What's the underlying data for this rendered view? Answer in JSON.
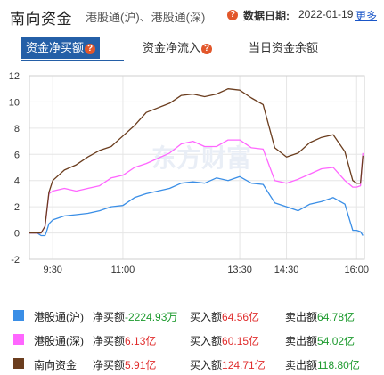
{
  "header": {
    "title": "南向资金",
    "subtitle": "港股通(沪)、港股通(深)",
    "date_label": "数据日期:",
    "date_value": "2022-01-19",
    "more_label": "更多"
  },
  "tabs": [
    {
      "label": "资金净买额",
      "has_help": true,
      "active": true
    },
    {
      "label": "资金净流入",
      "has_help": true,
      "active": false
    },
    {
      "label": "当日资金余额",
      "has_help": false,
      "active": false
    }
  ],
  "help_glyph": "?",
  "watermark": "东方财富",
  "colors": {
    "sh": "#3a8ee6",
    "sz": "#ff66ff",
    "total": "#6b3d1e",
    "accent": "#245fa7",
    "up": "#e02c2c",
    "down": "#1d9a2e"
  },
  "chart_data": {
    "type": "line",
    "title": "",
    "xlabel": "",
    "ylabel": "",
    "ylim": [
      -2,
      12
    ],
    "yticks": [
      12,
      10,
      8,
      6,
      4,
      2,
      0,
      -2
    ],
    "xlim": [
      "09:00",
      "16:10"
    ],
    "xticks": [
      "9:30",
      "11:00",
      "13:30",
      "14:30",
      "16:00"
    ],
    "grid": true,
    "series": [
      {
        "name": "港股通(沪)",
        "color": "#3a8ee6",
        "points": [
          [
            "09:00",
            0
          ],
          [
            "09:10",
            0
          ],
          [
            "09:15",
            -0.2
          ],
          [
            "09:20",
            -0.2
          ],
          [
            "09:22",
            0.1
          ],
          [
            "09:25",
            0.7
          ],
          [
            "09:30",
            1.0
          ],
          [
            "09:45",
            1.3
          ],
          [
            "10:00",
            1.4
          ],
          [
            "10:15",
            1.5
          ],
          [
            "10:30",
            1.7
          ],
          [
            "10:45",
            2.0
          ],
          [
            "11:00",
            2.1
          ],
          [
            "11:15",
            2.7
          ],
          [
            "11:30",
            3.0
          ],
          [
            "12:00",
            3.4
          ],
          [
            "12:15",
            3.8
          ],
          [
            "12:30",
            3.9
          ],
          [
            "12:45",
            3.8
          ],
          [
            "13:00",
            4.2
          ],
          [
            "13:15",
            4.0
          ],
          [
            "13:30",
            4.3
          ],
          [
            "13:45",
            3.8
          ],
          [
            "14:00",
            3.7
          ],
          [
            "14:15",
            2.3
          ],
          [
            "14:30",
            2.0
          ],
          [
            "14:45",
            1.7
          ],
          [
            "15:00",
            2.2
          ],
          [
            "15:15",
            2.4
          ],
          [
            "15:30",
            2.7
          ],
          [
            "15:45",
            2.2
          ],
          [
            "15:55",
            0.2
          ],
          [
            "16:00",
            0.2
          ],
          [
            "16:05",
            0.1
          ],
          [
            "16:08",
            -0.2
          ]
        ]
      },
      {
        "name": "港股通(深)",
        "color": "#ff66ff",
        "points": [
          [
            "09:00",
            0
          ],
          [
            "09:10",
            0
          ],
          [
            "09:15",
            0
          ],
          [
            "09:20",
            0.5
          ],
          [
            "09:25",
            3.0
          ],
          [
            "09:30",
            3.2
          ],
          [
            "09:45",
            3.4
          ],
          [
            "10:00",
            3.2
          ],
          [
            "10:15",
            3.4
          ],
          [
            "10:30",
            3.6
          ],
          [
            "10:45",
            4.2
          ],
          [
            "11:00",
            4.4
          ],
          [
            "11:15",
            5.0
          ],
          [
            "11:30",
            5.3
          ],
          [
            "12:00",
            6.1
          ],
          [
            "12:15",
            6.8
          ],
          [
            "12:30",
            7.0
          ],
          [
            "12:45",
            6.6
          ],
          [
            "13:00",
            6.6
          ],
          [
            "13:15",
            7.1
          ],
          [
            "13:30",
            7.1
          ],
          [
            "13:45",
            6.5
          ],
          [
            "14:00",
            6.4
          ],
          [
            "14:15",
            4.0
          ],
          [
            "14:30",
            3.8
          ],
          [
            "14:45",
            4.1
          ],
          [
            "15:00",
            4.5
          ],
          [
            "15:15",
            4.9
          ],
          [
            "15:30",
            5.0
          ],
          [
            "15:45",
            4.0
          ],
          [
            "15:55",
            3.5
          ],
          [
            "16:00",
            3.5
          ],
          [
            "16:05",
            3.6
          ],
          [
            "16:08",
            6.1
          ]
        ]
      },
      {
        "name": "南向资金",
        "color": "#6b3d1e",
        "points": [
          [
            "09:00",
            0
          ],
          [
            "09:10",
            0
          ],
          [
            "09:15",
            0
          ],
          [
            "09:20",
            0.5
          ],
          [
            "09:25",
            3.1
          ],
          [
            "09:30",
            4.0
          ],
          [
            "09:45",
            4.8
          ],
          [
            "10:00",
            5.2
          ],
          [
            "10:15",
            5.8
          ],
          [
            "10:30",
            6.3
          ],
          [
            "10:45",
            6.6
          ],
          [
            "11:00",
            7.4
          ],
          [
            "11:15",
            8.2
          ],
          [
            "11:30",
            9.2
          ],
          [
            "12:00",
            9.9
          ],
          [
            "12:15",
            10.5
          ],
          [
            "12:30",
            10.6
          ],
          [
            "12:45",
            10.4
          ],
          [
            "13:00",
            10.6
          ],
          [
            "13:15",
            11.0
          ],
          [
            "13:30",
            10.9
          ],
          [
            "13:45",
            10.3
          ],
          [
            "14:00",
            9.8
          ],
          [
            "14:15",
            6.5
          ],
          [
            "14:30",
            5.8
          ],
          [
            "14:45",
            6.1
          ],
          [
            "15:00",
            6.9
          ],
          [
            "15:15",
            7.3
          ],
          [
            "15:30",
            7.5
          ],
          [
            "15:45",
            6.2
          ],
          [
            "15:55",
            4.0
          ],
          [
            "16:00",
            3.8
          ],
          [
            "16:05",
            3.8
          ],
          [
            "16:08",
            5.9
          ]
        ]
      }
    ]
  },
  "legend": [
    {
      "name": "港股通(沪)",
      "color": "#3a8ee6",
      "net_label": "净买额",
      "net_value": "-2224.93万",
      "buy_label": "买入额",
      "buy_value": "64.56亿",
      "sell_label": "卖出额",
      "sell_value": "64.78亿"
    },
    {
      "name": "港股通(深)",
      "color": "#ff66ff",
      "net_label": "净买额",
      "net_value": "6.13亿",
      "buy_label": "买入额",
      "buy_value": "60.15亿",
      "sell_label": "卖出额",
      "sell_value": "54.02亿"
    },
    {
      "name": "南向资金",
      "color": "#6b3d1e",
      "net_label": "净买额",
      "net_value": "5.91亿",
      "buy_label": "买入额",
      "buy_value": "124.71亿",
      "sell_label": "卖出额",
      "sell_value": "118.80亿"
    }
  ]
}
